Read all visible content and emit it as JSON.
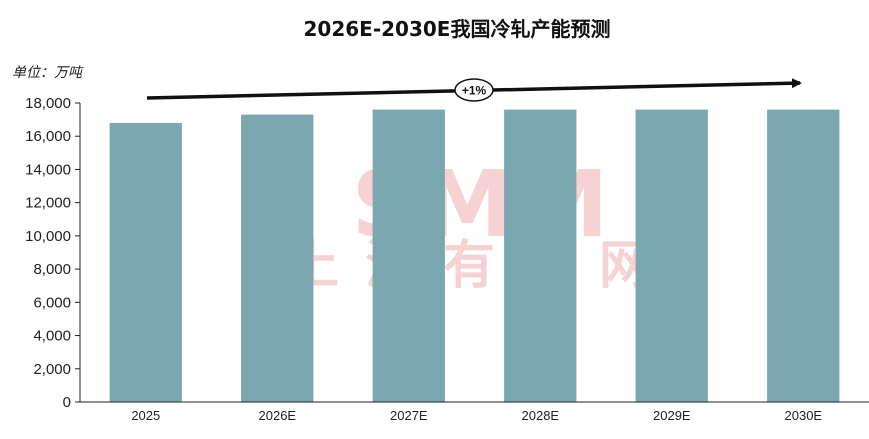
{
  "chart_data": {
    "type": "bar",
    "title": "2026E-2030E我国冷轧产能预测",
    "unit_label": "单位：万吨",
    "categories": [
      "2025",
      "2026E",
      "2027E",
      "2028E",
      "2029E",
      "2030E"
    ],
    "values": [
      16800,
      17300,
      17600,
      17600,
      17600,
      17600
    ],
    "ylim": [
      0,
      18000
    ],
    "yticks": [
      0,
      2000,
      4000,
      6000,
      8000,
      10000,
      12000,
      14000,
      16000,
      18000
    ],
    "ytick_labels": [
      "0",
      "2,000",
      "4,000",
      "6,000",
      "8,000",
      "10,000",
      "12,000",
      "14,000",
      "16,000",
      "18,000"
    ],
    "bar_color": "#7ba7b0",
    "grid": false,
    "legend": "none",
    "annotation": {
      "text": "+1%",
      "type": "trend-arrow"
    }
  },
  "watermark": {
    "brand": "SMM",
    "name": "上海有色网",
    "color": "#e06060"
  }
}
